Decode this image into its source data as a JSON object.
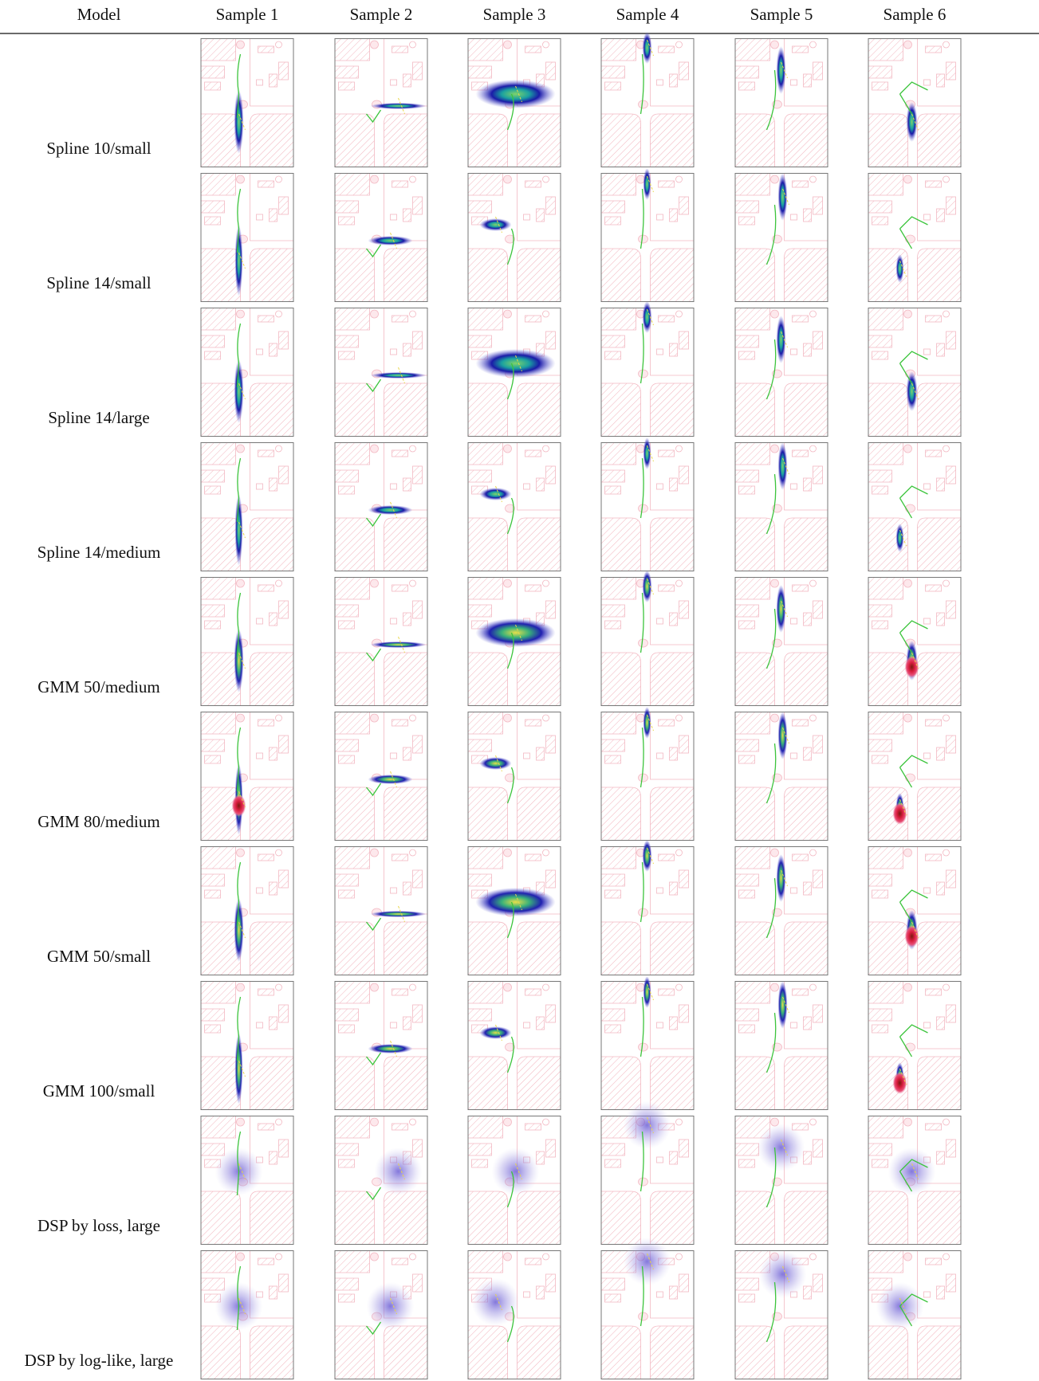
{
  "table": {
    "header": [
      "Model",
      "Sample 1",
      "Sample 2",
      "Sample 3",
      "Sample 4",
      "Sample 5",
      "Sample 6"
    ],
    "rows": [
      "Spline 10/small",
      "Spline 14/small",
      "Spline 14/large",
      "Spline 14/medium",
      "GMM 50/medium",
      "GMM 80/medium",
      "GMM 50/small",
      "GMM 100/small",
      "DSP by loss, large",
      "DSP by log-like, large"
    ]
  }
}
